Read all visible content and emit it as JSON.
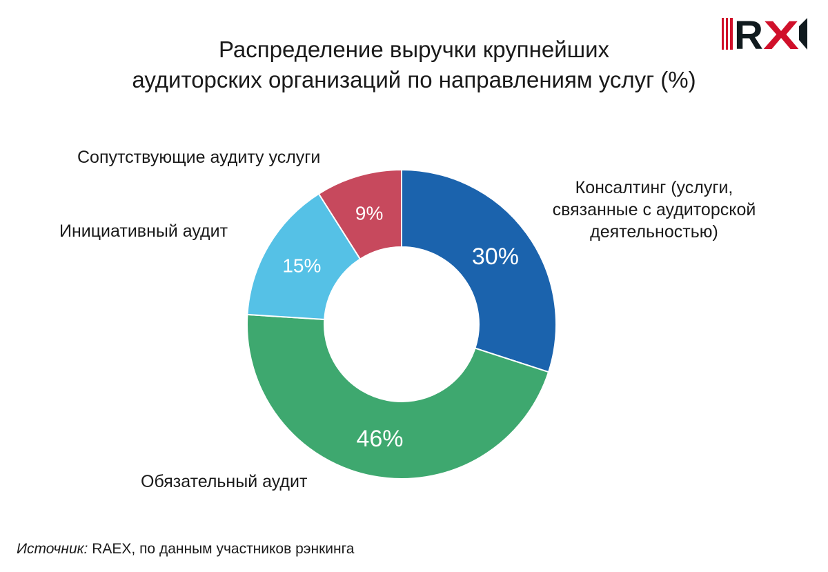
{
  "title_line1": "Распределение выручки крупнейших",
  "title_line2": "аудиторских организаций по направлениям услуг (%)",
  "logo_text": "RX",
  "source_label": "Источник:",
  "source_text": " RAEX, по данным участников рэнкинга",
  "chart_data": {
    "type": "pie",
    "donut": true,
    "title": "Распределение выручки крупнейших аудиторских организаций по направлениям услуг (%)",
    "slices": [
      {
        "label": "Консалтинг (услуги, связанные с аудиторской деятельностью)",
        "value": 30,
        "display": "30%",
        "color": "#1b63ad"
      },
      {
        "label": "Обязательный аудит",
        "value": 46,
        "display": "46%",
        "color": "#3ea86f"
      },
      {
        "label": "Инициативный аудит",
        "value": 15,
        "display": "15%",
        "color": "#55c1e6"
      },
      {
        "label": "Сопутствующие аудиту услуги",
        "value": 9,
        "display": "9%",
        "color": "#c7495d"
      }
    ],
    "label_lines": {
      "consulting": [
        "Консалтинг (услуги,",
        "связанные с аудиторской",
        "деятельностью)"
      ]
    }
  }
}
